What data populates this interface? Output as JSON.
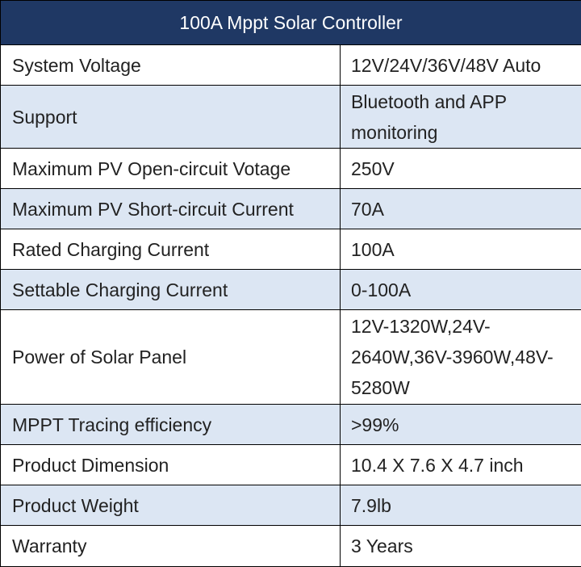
{
  "title": "100A Mppt Solar Controller",
  "rows": [
    {
      "label": "System Voltage",
      "value": "12V/24V/36V/48V Auto"
    },
    {
      "label": "Support",
      "value": "Bluetooth and APP monitoring"
    },
    {
      "label": "Maximum PV Open-circuit Votage",
      "value": "250V"
    },
    {
      "label": "Maximum PV Short-circuit Current",
      "value": "70A"
    },
    {
      "label": "Rated Charging Current",
      "value": "100A"
    },
    {
      "label": "Settable Charging Current",
      "value": "0-100A"
    },
    {
      "label": "Power of Solar Panel",
      "value": "12V-1320W,24V-2640W,36V-3960W,48V-5280W"
    },
    {
      "label": "MPPT Tracing efficiency",
      "value": ">99%"
    },
    {
      "label": "Product Dimension",
      "value": "10.4 X 7.6 X 4.7 inch"
    },
    {
      "label": "Product Weight",
      "value": "7.9lb"
    },
    {
      "label": "Warranty",
      "value": "3 Years"
    }
  ],
  "colors": {
    "header_bg": "#1F3864",
    "header_text": "#FFFFFF",
    "stripe": "#DCE6F3",
    "border": "#000000"
  }
}
